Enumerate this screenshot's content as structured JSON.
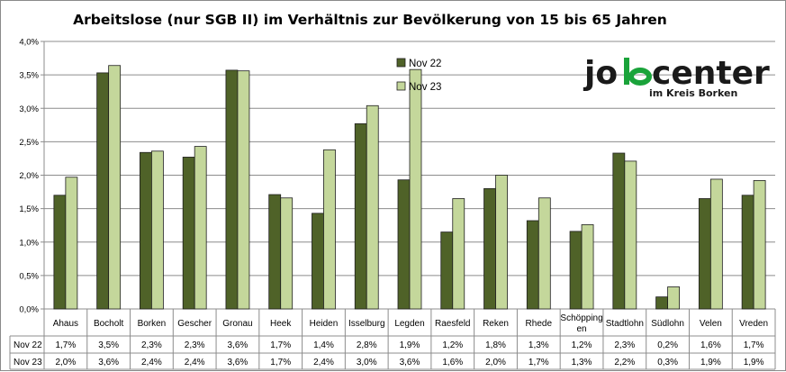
{
  "chart_data": {
    "type": "bar",
    "title": "Arbeitslose (nur SGB II) im Verhältnis zur Bevölkerung von 15 bis 65 Jahren",
    "categories": [
      "Ahaus",
      "Bocholt",
      "Borken",
      "Gescher",
      "Gronau",
      "Heek",
      "Heiden",
      "Isselburg",
      "Legden",
      "Raesfeld",
      "Reken",
      "Rhede",
      "Schöpping\nen",
      "Stadtlohn",
      "Südlohn",
      "Velen",
      "Vreden"
    ],
    "series": [
      {
        "name": "Nov 22",
        "color": "#4f6228",
        "values": [
          1.7,
          3.53,
          2.34,
          2.27,
          3.57,
          1.71,
          1.43,
          2.77,
          1.93,
          1.15,
          1.8,
          1.32,
          1.16,
          2.33,
          0.18,
          1.65,
          1.7
        ],
        "labels": [
          "1,7%",
          "3,5%",
          "2,3%",
          "2,3%",
          "3,6%",
          "1,7%",
          "1,4%",
          "2,8%",
          "1,9%",
          "1,2%",
          "1,8%",
          "1,3%",
          "1,2%",
          "2,3%",
          "0,2%",
          "1,6%",
          "1,7%"
        ]
      },
      {
        "name": "Nov 23",
        "color": "#c4d79b",
        "values": [
          1.97,
          3.64,
          2.36,
          2.43,
          3.56,
          1.66,
          2.38,
          3.04,
          3.58,
          1.65,
          2.0,
          1.66,
          1.26,
          2.21,
          0.33,
          1.94,
          1.92
        ],
        "labels": [
          "2,0%",
          "3,6%",
          "2,4%",
          "2,4%",
          "3,6%",
          "1,7%",
          "2,4%",
          "3,0%",
          "3,6%",
          "1,6%",
          "2,0%",
          "1,7%",
          "1,3%",
          "2,2%",
          "0,3%",
          "1,9%",
          "1,9%"
        ]
      }
    ],
    "ylim": [
      0,
      4.0
    ],
    "yticks": [
      "0,0%",
      "0,5%",
      "1,0%",
      "1,5%",
      "2,0%",
      "2,5%",
      "3,0%",
      "3,5%",
      "4,0%"
    ],
    "grid": true,
    "legend_position": "top-center",
    "data_table": true
  },
  "logo": {
    "text_main": "jobcenter",
    "text_sub": "im Kreis Borken",
    "colors": {
      "dark": "#1a1a1a",
      "accent": "#1aa33a"
    }
  }
}
